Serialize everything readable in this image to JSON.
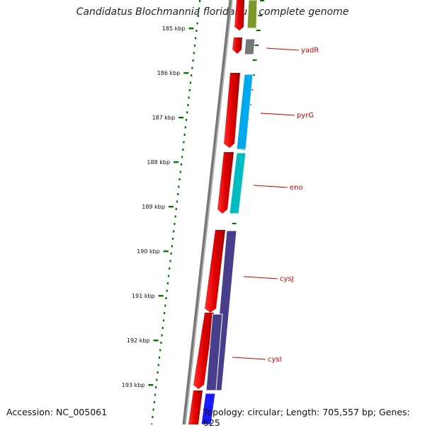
{
  "title": "Candidatus Blochmannia floridanus, complete genome",
  "accession": "Accession: NC_005061",
  "topology": "Topology: circular; Length: 705,557 bp; Genes: 625",
  "ticks": [
    "185 kbp",
    "186 kbp",
    "187 kbp",
    "188 kbp",
    "189 kbp",
    "190 kbp",
    "191 kbp",
    "192 kbp",
    "193 kbp"
  ],
  "genes": [
    {
      "name": "",
      "color": "#7a9a2a"
    },
    {
      "name": "yadR",
      "color": "#777777"
    },
    {
      "name": "pyrG",
      "color": "#00a8ee"
    },
    {
      "name": "eno",
      "color": "#00bcc0"
    },
    {
      "name": "cysJ",
      "color": "#473f8c"
    },
    {
      "name": "cysI",
      "color": "#473f8c"
    },
    {
      "name": "",
      "color": "#1a1aff"
    }
  ],
  "colors": {
    "cds_strand": "#ee0000",
    "gc_skew": "#007700",
    "backbone": "#888888"
  }
}
